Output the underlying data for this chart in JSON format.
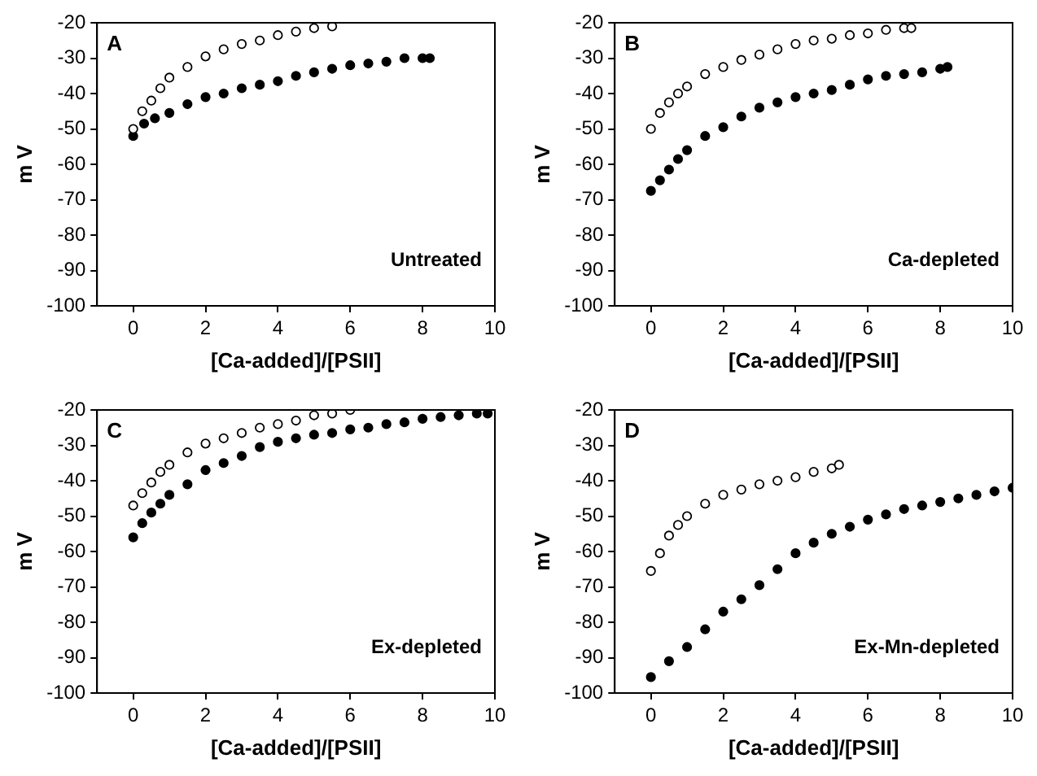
{
  "chart_data": [
    {
      "type": "scatter",
      "xlabel": "[Ca-added]/[PSII]",
      "ylabel": "m V",
      "annotations": [
        "A",
        "Untreated"
      ],
      "xlim": [
        -1,
        10
      ],
      "xticks": [
        0,
        2,
        4,
        6,
        8,
        10
      ],
      "ylim": [
        -100,
        -20
      ],
      "yticks": [
        -100,
        -90,
        -80,
        -70,
        -60,
        -50,
        -40,
        -30,
        -20
      ],
      "grid": false,
      "legend": false,
      "marker": "circle",
      "series": [
        {
          "color": "#000000",
          "x": [
            0,
            0.25,
            0.5,
            0.75,
            1,
            1.5,
            2,
            2.5,
            3,
            3.5,
            4,
            4.5,
            5,
            5.5
          ],
          "values": [
            -50,
            -45,
            -42,
            -38.5,
            -35.5,
            -32.5,
            -29.5,
            -27.5,
            -26,
            -25,
            -23.5,
            -22.5,
            -21.5,
            -21
          ]
        },
        {
          "color": "#000000",
          "x": [
            0,
            0.3,
            0.6,
            1,
            1.5,
            2,
            2.5,
            3,
            3.5,
            4,
            4.5,
            5,
            5.5,
            6,
            6.5,
            7,
            7.5,
            8,
            8.2
          ],
          "values": [
            -52,
            -48.5,
            -47,
            -45.5,
            -43,
            -41,
            -40,
            -38.5,
            -37.5,
            -36.5,
            -35,
            -34,
            -33,
            -32,
            -31.5,
            -31,
            -30,
            -30,
            -30
          ]
        }
      ]
    },
    {
      "type": "scatter",
      "xlabel": "[Ca-added]/[PSII]",
      "ylabel": "m V",
      "annotations": [
        "B",
        "Ca-depleted"
      ],
      "xlim": [
        -1,
        10
      ],
      "xticks": [
        0,
        2,
        4,
        6,
        8,
        10
      ],
      "ylim": [
        -100,
        -20
      ],
      "yticks": [
        -100,
        -90,
        -80,
        -70,
        -60,
        -50,
        -40,
        -30,
        -20
      ],
      "grid": false,
      "legend": false,
      "marker": "circle",
      "series": [
        {
          "color": "#000000",
          "x": [
            0,
            0.25,
            0.5,
            0.75,
            1,
            1.5,
            2,
            2.5,
            3,
            3.5,
            4,
            4.5,
            5,
            5.5,
            6,
            6.5,
            7,
            7.2
          ],
          "values": [
            -50,
            -45.5,
            -42.5,
            -40,
            -38,
            -34.5,
            -32.5,
            -30.5,
            -29,
            -27.5,
            -26,
            -25,
            -24.5,
            -23.5,
            -23,
            -22,
            -21.5,
            -21.5
          ]
        },
        {
          "color": "#000000",
          "x": [
            0,
            0.25,
            0.5,
            0.75,
            1,
            1.5,
            2,
            2.5,
            3,
            3.5,
            4,
            4.5,
            5,
            5.5,
            6,
            6.5,
            7,
            7.5,
            8,
            8.2
          ],
          "values": [
            -67.5,
            -64.5,
            -61.5,
            -58.5,
            -56,
            -52,
            -49.5,
            -46.5,
            -44,
            -42.5,
            -41,
            -40,
            -39,
            -37.5,
            -36,
            -35,
            -34.5,
            -34,
            -33,
            -32.5
          ]
        }
      ]
    },
    {
      "type": "scatter",
      "xlabel": "[Ca-added]/[PSII]",
      "ylabel": "m V",
      "annotations": [
        "C",
        "Ex-depleted"
      ],
      "xlim": [
        -1,
        10
      ],
      "xticks": [
        0,
        2,
        4,
        6,
        8,
        10
      ],
      "ylim": [
        -100,
        -20
      ],
      "yticks": [
        -100,
        -90,
        -80,
        -70,
        -60,
        -50,
        -40,
        -30,
        -20
      ],
      "grid": false,
      "legend": false,
      "marker": "circle",
      "series": [
        {
          "color": "#000000",
          "x": [
            0,
            0.25,
            0.5,
            0.75,
            1,
            1.5,
            2,
            2.5,
            3,
            3.5,
            4,
            4.5,
            5,
            5.5,
            6
          ],
          "values": [
            -47,
            -43.5,
            -40.5,
            -37.5,
            -35.5,
            -32,
            -29.5,
            -28,
            -26.5,
            -25,
            -24,
            -23,
            -21.5,
            -21,
            -20
          ]
        },
        {
          "color": "#000000",
          "x": [
            0,
            0.25,
            0.5,
            0.75,
            1,
            1.5,
            2,
            2.5,
            3,
            3.5,
            4,
            4.5,
            5,
            5.5,
            6,
            6.5,
            7,
            7.5,
            8,
            8.5,
            9,
            9.5,
            9.8
          ],
          "values": [
            -56,
            -52,
            -49,
            -46.5,
            -44,
            -41,
            -37,
            -35,
            -33,
            -30.5,
            -29,
            -28,
            -27,
            -26.5,
            -25.5,
            -25,
            -24,
            -23.5,
            -22.5,
            -22,
            -21.5,
            -21,
            -21
          ]
        }
      ]
    },
    {
      "type": "scatter",
      "xlabel": "[Ca-added]/[PSII]",
      "ylabel": "m V",
      "annotations": [
        "D",
        "Ex-Mn-depleted"
      ],
      "xlim": [
        -1,
        10
      ],
      "xticks": [
        0,
        2,
        4,
        6,
        8,
        10
      ],
      "ylim": [
        -100,
        -20
      ],
      "yticks": [
        -100,
        -90,
        -80,
        -70,
        -60,
        -50,
        -40,
        -30,
        -20
      ],
      "grid": false,
      "legend": false,
      "marker": "circle",
      "series": [
        {
          "color": "#000000",
          "x": [
            0,
            0.25,
            0.5,
            0.75,
            1,
            1.5,
            2,
            2.5,
            3,
            3.5,
            4,
            4.5,
            5,
            5.2
          ],
          "values": [
            -65.5,
            -60.5,
            -55.5,
            -52.5,
            -50,
            -46.5,
            -44,
            -42.5,
            -41,
            -40,
            -39,
            -37.5,
            -36.5,
            -35.5
          ]
        },
        {
          "color": "#000000",
          "x": [
            0,
            0.5,
            1,
            1.5,
            2,
            2.5,
            3,
            3.5,
            4,
            4.5,
            5,
            5.5,
            6,
            6.5,
            7,
            7.5,
            8,
            8.5,
            9,
            9.5,
            10
          ],
          "values": [
            -95.5,
            -91,
            -87,
            -82,
            -77,
            -73.5,
            -69.5,
            -65,
            -60.5,
            -57.5,
            -55,
            -53,
            -51,
            -49.5,
            -48,
            -47,
            -46,
            -45,
            -44,
            -43,
            -42
          ]
        }
      ]
    }
  ]
}
